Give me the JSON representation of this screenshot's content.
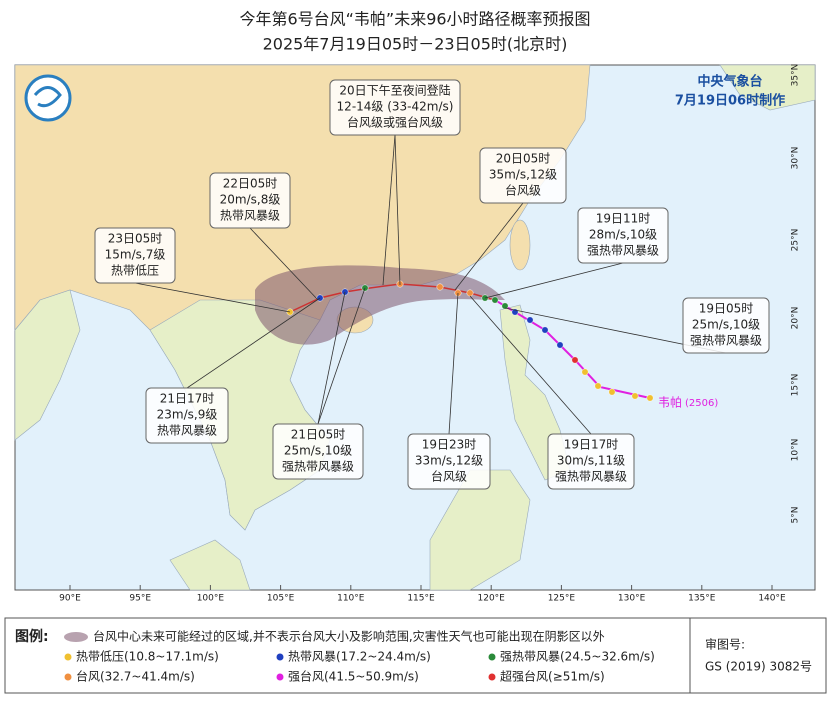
{
  "title": {
    "line1": "今年第6号台风“韦帕”未来96小时路径概率预报图",
    "line2": "2025年7月19日05时－23日05时(北京时)"
  },
  "agency": {
    "name": "中央气象台",
    "issued": "7月19日06时制作"
  },
  "longitude_labels": [
    "90°E",
    "95°E",
    "100°E",
    "105°E",
    "110°E",
    "115°E",
    "120°E",
    "125°E",
    "130°E",
    "135°E",
    "140°E"
  ],
  "latitude_labels": [
    "35°N",
    "30°N",
    "25°N",
    "20°N",
    "15°N",
    "10°N",
    "5°N"
  ],
  "typhoon_label": {
    "name": "韦帕",
    "code": "(2506)"
  },
  "callouts": [
    {
      "lines": [
        "20日下午至夜间登陆",
        "12-14级 (33-42m/s)",
        "台风级或强台风级"
      ]
    },
    {
      "lines": [
        "20日05时",
        "35m/s,12级",
        "台风级"
      ]
    },
    {
      "lines": [
        "19日11时",
        "28m/s,10级",
        "强热带风暴级"
      ]
    },
    {
      "lines": [
        "19日05时",
        "25m/s,10级",
        "强热带风暴级"
      ]
    },
    {
      "lines": [
        "19日17时",
        "30m/s,11级",
        "强热带风暴级"
      ]
    },
    {
      "lines": [
        "19日23时",
        "33m/s,12级",
        "台风级"
      ]
    },
    {
      "lines": [
        "21日05时",
        "25m/s,10级",
        "强热带风暴级"
      ]
    },
    {
      "lines": [
        "21日17时",
        "23m/s,9级",
        "热带风暴级"
      ]
    },
    {
      "lines": [
        "22日05时",
        "20m/s,8级",
        "热带风暴级"
      ]
    },
    {
      "lines": [
        "23日05时",
        "15m/s,7级",
        "热带低压"
      ]
    }
  ],
  "legend": {
    "title": "图例:",
    "cone": "台风中心未来可能经过的区域,并不表示台风大小及影响范围,灾害性天气也可能出现在阴影区以外",
    "items": [
      "热带低压(10.8~17.1m/s)",
      "热带风暴(17.2~24.4m/s)",
      "强热带风暴(24.5~32.6m/s)",
      "台风(32.7~41.4m/s)",
      "强台风(41.5~50.9m/s)",
      "超强台风(≥51m/s)"
    ]
  },
  "approval": {
    "label": "审图号:",
    "number": "GS (2019) 3082号"
  }
}
